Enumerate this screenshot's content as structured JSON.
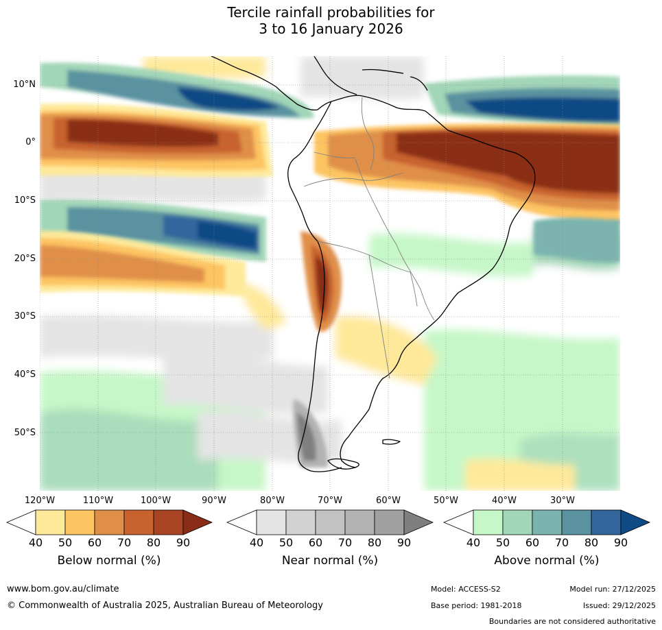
{
  "title": {
    "line1": "Tercile rainfall probabilities for",
    "line2": "3 to 16 January 2026"
  },
  "map": {
    "lat_labels": [
      "10°N",
      "0°",
      "10°S",
      "20°S",
      "30°S",
      "40°S",
      "50°S"
    ],
    "lon_labels": [
      "120°W",
      "110°W",
      "100°W",
      "90°W",
      "80°W",
      "70°W",
      "60°W",
      "50°W",
      "40°W",
      "30°W"
    ]
  },
  "colorbars": {
    "below": {
      "title": "Below normal (%)",
      "ticks": [
        "40",
        "50",
        "60",
        "70",
        "80",
        "90"
      ],
      "colors": [
        "#ffffff",
        "#fee99a",
        "#fdc462",
        "#e08f48",
        "#c8622e",
        "#a84323",
        "#8a2d16"
      ]
    },
    "near": {
      "title": "Near normal (%)",
      "ticks": [
        "40",
        "50",
        "60",
        "70",
        "80",
        "90"
      ],
      "colors": [
        "#ffffff",
        "#e4e4e4",
        "#d2d2d2",
        "#c2c2c2",
        "#b2b2b2",
        "#a0a0a0",
        "#7f7f7f"
      ]
    },
    "above": {
      "title": "Above normal (%)",
      "ticks": [
        "40",
        "50",
        "60",
        "70",
        "80",
        "90"
      ],
      "colors": [
        "#ffffff",
        "#c6f7c8",
        "#a2d6b8",
        "#7bb3ae",
        "#5a92a0",
        "#33669c",
        "#104a84"
      ]
    }
  },
  "footer": {
    "website": "www.bom.gov.au/climate",
    "copyright": "© Commonwealth of Australia 2025, Australian Bureau of Meteorology",
    "model": "Model: ACCESS-S2",
    "model_run": "Model run: 27/12/2025",
    "base_period": "Base period: 1981-2018",
    "issued": "Issued: 29/12/2025",
    "disclaimer": "Boundaries are not considered authoritative"
  }
}
